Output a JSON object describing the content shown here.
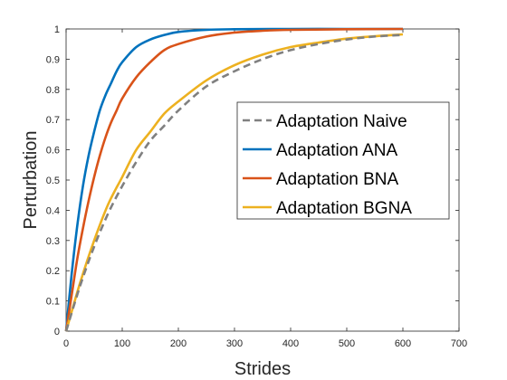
{
  "chart_data": {
    "type": "line",
    "xlabel": "Strides",
    "ylabel": "Perturbation",
    "xlim": [
      0,
      700
    ],
    "ylim": [
      0,
      1
    ],
    "xticks": [
      "0",
      "100",
      "200",
      "300",
      "400",
      "500",
      "600",
      "700"
    ],
    "yticks": [
      "0",
      "0.1",
      "0.2",
      "0.3",
      "0.4",
      "0.5",
      "0.6",
      "0.7",
      "0.8",
      "0.9",
      "1"
    ],
    "grid": false,
    "legend_position": "right",
    "series": [
      {
        "name": "Adaptation Naive",
        "color": "#808080",
        "style": "dashed",
        "x": [
          0,
          25,
          50,
          75,
          100,
          125,
          150,
          175,
          200,
          250,
          300,
          350,
          400,
          450,
          500,
          550,
          600
        ],
        "y": [
          0,
          0.15,
          0.28,
          0.39,
          0.48,
          0.56,
          0.63,
          0.68,
          0.73,
          0.81,
          0.86,
          0.9,
          0.93,
          0.95,
          0.965,
          0.975,
          0.98
        ]
      },
      {
        "name": "Adaptation ANA",
        "color": "#0072BD",
        "style": "solid",
        "x": [
          0,
          10,
          20,
          30,
          40,
          50,
          60,
          70,
          80,
          90,
          100,
          125,
          150,
          175,
          200,
          250,
          300,
          400,
          500,
          600
        ],
        "y": [
          0,
          0.19,
          0.35,
          0.48,
          0.58,
          0.66,
          0.73,
          0.78,
          0.82,
          0.86,
          0.89,
          0.94,
          0.965,
          0.98,
          0.99,
          0.997,
          0.999,
          1,
          1,
          1
        ]
      },
      {
        "name": "Adaptation BNA",
        "color": "#D95319",
        "style": "solid",
        "x": [
          0,
          10,
          20,
          30,
          40,
          50,
          60,
          70,
          80,
          90,
          100,
          125,
          150,
          175,
          200,
          250,
          300,
          350,
          400,
          500,
          600
        ],
        "y": [
          0,
          0.12,
          0.24,
          0.34,
          0.43,
          0.51,
          0.58,
          0.64,
          0.69,
          0.73,
          0.77,
          0.84,
          0.89,
          0.93,
          0.95,
          0.975,
          0.988,
          0.994,
          0.997,
          0.999,
          1
        ]
      },
      {
        "name": "Adaptation BGNA",
        "color": "#EDB120",
        "style": "solid",
        "x": [
          0,
          25,
          50,
          75,
          100,
          125,
          150,
          175,
          200,
          250,
          300,
          350,
          400,
          450,
          500,
          550,
          600
        ],
        "y": [
          0,
          0.16,
          0.3,
          0.42,
          0.51,
          0.6,
          0.66,
          0.72,
          0.76,
          0.83,
          0.88,
          0.915,
          0.94,
          0.955,
          0.968,
          0.976,
          0.982
        ]
      }
    ]
  }
}
